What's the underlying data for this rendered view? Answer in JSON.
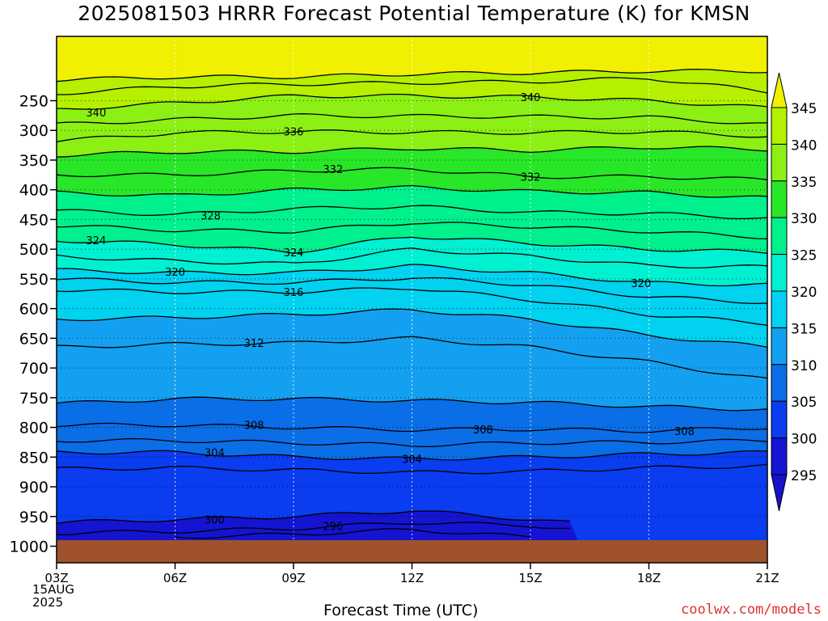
{
  "title": "2025081503 HRRR Forecast Potential Temperature (K) for KMSN",
  "credit": "coolwx.com/models",
  "colors": {
    "ground": "#a0522d",
    "bands": [
      "#1414d2",
      "#0a3cf0",
      "#0a6ee6",
      "#14a0f0",
      "#00d2f0",
      "#00f0d2",
      "#00f08c",
      "#28e628",
      "#8cf014",
      "#b4f000",
      "#f0f000"
    ]
  },
  "chart_data": {
    "type": "contour",
    "title": "2025081503 HRRR Forecast Potential Temperature (K) for KMSN",
    "xlabel": "Forecast Time (UTC)",
    "date_label": [
      "15AUG",
      "2025"
    ],
    "x_ticks": [
      "03Z",
      "06Z",
      "09Z",
      "12Z",
      "15Z",
      "18Z",
      "21Z"
    ],
    "x_hours": [
      3,
      6,
      9,
      12,
      15,
      18,
      21
    ],
    "y_ticks": [
      250,
      300,
      350,
      400,
      450,
      500,
      550,
      600,
      650,
      700,
      750,
      800,
      850,
      900,
      950,
      1000
    ],
    "y_range_hpa": [
      200,
      1025
    ],
    "surface_hpa": 990,
    "colorbar_levels": [
      295,
      300,
      305,
      310,
      315,
      320,
      325,
      330,
      335,
      340,
      345
    ],
    "contour_interval": 2,
    "contour_labels": [
      {
        "text": "340",
        "x": 4.0,
        "p": 270
      },
      {
        "text": "340",
        "x": 15.0,
        "p": 244
      },
      {
        "text": "336",
        "x": 9.0,
        "p": 302
      },
      {
        "text": "332",
        "x": 10.0,
        "p": 365
      },
      {
        "text": "332",
        "x": 15.0,
        "p": 378
      },
      {
        "text": "328",
        "x": 6.9,
        "p": 443
      },
      {
        "text": "324",
        "x": 4.0,
        "p": 485
      },
      {
        "text": "324",
        "x": 9.0,
        "p": 505
      },
      {
        "text": "320",
        "x": 6.0,
        "p": 538
      },
      {
        "text": "320",
        "x": 17.8,
        "p": 557
      },
      {
        "text": "316",
        "x": 9.0,
        "p": 572
      },
      {
        "text": "312",
        "x": 8.0,
        "p": 658
      },
      {
        "text": "308",
        "x": 8.0,
        "p": 796
      },
      {
        "text": "308",
        "x": 13.8,
        "p": 803
      },
      {
        "text": "308",
        "x": 18.9,
        "p": 806
      },
      {
        "text": "304",
        "x": 7.0,
        "p": 842
      },
      {
        "text": "304",
        "x": 12.0,
        "p": 853
      },
      {
        "text": "300",
        "x": 7.0,
        "p": 955
      },
      {
        "text": "296",
        "x": 10.0,
        "p": 966
      }
    ],
    "isotherms": [
      {
        "theta": 344,
        "x": [
          3,
          6,
          9,
          12,
          15,
          18,
          21
        ],
        "p": [
          215,
          210,
          210,
          205,
          203,
          200,
          200
        ]
      },
      {
        "theta": 342,
        "x": [
          3,
          6,
          9,
          12,
          15,
          18,
          21
        ],
        "p": [
          238,
          226,
          222,
          220,
          218,
          212,
          235
        ]
      },
      {
        "theta": 340,
        "x": [
          3,
          6,
          9,
          12,
          15,
          18,
          21
        ],
        "p": [
          265,
          254,
          242,
          242,
          244,
          250,
          262
        ]
      },
      {
        "theta": 338,
        "x": [
          3,
          6,
          9,
          12,
          15,
          18,
          21
        ],
        "p": [
          290,
          282,
          275,
          276,
          277,
          278,
          290
        ]
      },
      {
        "theta": 336,
        "x": [
          3,
          6,
          9,
          12,
          15,
          18,
          21
        ],
        "p": [
          318,
          304,
          302,
          303,
          304,
          302,
          310
        ]
      },
      {
        "theta": 334,
        "x": [
          3,
          6,
          9,
          12,
          15,
          18,
          21
        ],
        "p": [
          342,
          336,
          336,
          330,
          334,
          328,
          332
        ]
      },
      {
        "theta": 332,
        "x": [
          3,
          6,
          9,
          12,
          15,
          18,
          21
        ],
        "p": [
          375,
          375,
          368,
          365,
          378,
          378,
          383
        ]
      },
      {
        "theta": 330,
        "x": [
          3,
          6,
          9,
          12,
          15,
          18,
          21
        ],
        "p": [
          405,
          410,
          400,
          396,
          403,
          405,
          414
        ]
      },
      {
        "theta": 328,
        "x": [
          3,
          6,
          9,
          12,
          15,
          18,
          21
        ],
        "p": [
          435,
          442,
          432,
          428,
          438,
          440,
          448
        ]
      },
      {
        "theta": 326,
        "x": [
          3,
          6,
          9,
          12,
          15,
          18,
          21
        ],
        "p": [
          460,
          468,
          470,
          455,
          462,
          470,
          480
        ]
      },
      {
        "theta": 324,
        "x": [
          3,
          6,
          9,
          12,
          15,
          18,
          21
        ],
        "p": [
          485,
          492,
          505,
          478,
          490,
          500,
          505
        ]
      },
      {
        "theta": 322,
        "x": [
          3,
          6,
          9,
          12,
          15,
          18,
          21
        ],
        "p": [
          512,
          520,
          525,
          500,
          512,
          528,
          530
        ]
      },
      {
        "theta": 320,
        "x": [
          3,
          6,
          9,
          12,
          15,
          18,
          21
        ],
        "p": [
          535,
          540,
          540,
          528,
          540,
          557,
          560
        ]
      },
      {
        "theta": 318,
        "x": [
          3,
          6,
          9,
          12,
          15,
          18,
          21
        ],
        "p": [
          550,
          556,
          556,
          548,
          560,
          580,
          590
        ]
      },
      {
        "theta": 316,
        "x": [
          3,
          6,
          9,
          12,
          15,
          18,
          21
        ],
        "p": [
          568,
          572,
          572,
          565,
          585,
          610,
          625
        ]
      },
      {
        "theta": 314,
        "x": [
          3,
          6,
          9,
          12,
          15,
          18,
          21
        ],
        "p": [
          618,
          615,
          610,
          602,
          618,
          645,
          665
        ]
      },
      {
        "theta": 312,
        "x": [
          3,
          6,
          9,
          12,
          15,
          18,
          21
        ],
        "p": [
          665,
          660,
          658,
          650,
          665,
          690,
          720
        ]
      },
      {
        "theta": 310,
        "x": [
          3,
          6,
          9,
          12,
          15,
          18,
          21
        ],
        "p": [
          760,
          752,
          752,
          755,
          758,
          765,
          770
        ]
      },
      {
        "theta": 308,
        "x": [
          3,
          6,
          9,
          12,
          15,
          18,
          21
        ],
        "p": [
          796,
          796,
          800,
          804,
          803,
          806,
          800
        ]
      },
      {
        "theta": 306,
        "x": [
          3,
          6,
          9,
          12,
          15,
          18,
          21
        ],
        "p": [
          822,
          822,
          826,
          830,
          826,
          825,
          822
        ]
      },
      {
        "theta": 304,
        "x": [
          3,
          6,
          9,
          12,
          15,
          18,
          21
        ],
        "p": [
          842,
          842,
          850,
          853,
          850,
          845,
          842
        ]
      },
      {
        "theta": 302,
        "x": [
          3,
          6,
          9,
          12,
          15,
          18,
          21
        ],
        "p": [
          870,
          868,
          872,
          876,
          874,
          868,
          865
        ]
      },
      {
        "theta": 300,
        "x": [
          3,
          6,
          9,
          12,
          15,
          16.2
        ],
        "p": [
          960,
          955,
          950,
          940,
          955,
          962
        ]
      },
      {
        "theta": 298,
        "x": [
          3,
          6,
          9,
          12,
          15,
          16.2
        ],
        "p": [
          978,
          975,
          970,
          960,
          965,
          972
        ]
      },
      {
        "theta": 296,
        "x": [
          6,
          9,
          12,
          15
        ],
        "p": [
          985,
          980,
          972,
          985
        ]
      }
    ]
  }
}
